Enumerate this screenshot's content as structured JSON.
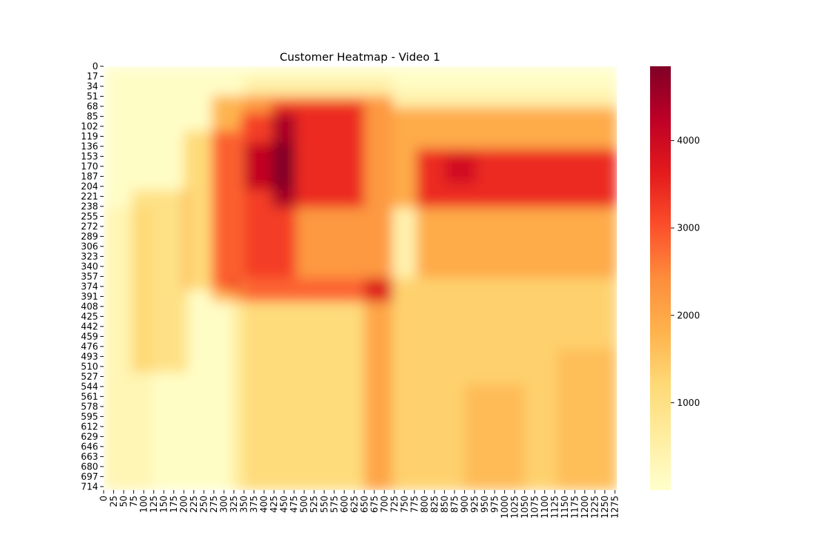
{
  "chart_data": {
    "type": "heatmap",
    "title": "Customer Heatmap - Video 1",
    "xlabel": "",
    "ylabel": "",
    "x_ticks": [
      0,
      25,
      50,
      75,
      100,
      125,
      150,
      175,
      200,
      225,
      250,
      275,
      300,
      325,
      350,
      375,
      400,
      425,
      450,
      475,
      500,
      525,
      550,
      575,
      600,
      625,
      650,
      675,
      700,
      725,
      750,
      775,
      800,
      825,
      850,
      875,
      900,
      925,
      950,
      975,
      1000,
      1025,
      1050,
      1075,
      1100,
      1125,
      1150,
      1175,
      1200,
      1225,
      1250,
      1275
    ],
    "y_ticks": [
      0,
      17,
      34,
      51,
      68,
      85,
      102,
      119,
      136,
      153,
      170,
      187,
      204,
      221,
      238,
      255,
      272,
      289,
      306,
      323,
      340,
      357,
      374,
      391,
      408,
      425,
      442,
      459,
      476,
      493,
      510,
      527,
      544,
      561,
      578,
      595,
      612,
      629,
      646,
      663,
      680,
      697,
      714
    ],
    "xlim": [
      0,
      1280
    ],
    "ylim": [
      0,
      720
    ],
    "colorbar": {
      "colormap": "YlOrRd",
      "min": 0,
      "max": 4850,
      "ticks": [
        1000,
        2000,
        3000,
        4000
      ],
      "colors": [
        "#ffffcc",
        "#ffeda0",
        "#fed976",
        "#feb24c",
        "#fd8d3c",
        "#fc4e2a",
        "#e31a1c",
        "#bd0026",
        "#800026"
      ]
    },
    "regions": [
      {
        "x": [
          0,
          1280
        ],
        "y": [
          0,
          720
        ],
        "value": 80
      },
      {
        "x": [
          350,
          720
        ],
        "y": [
          25,
          720
        ],
        "value": 450
      },
      {
        "x": [
          720,
          1280
        ],
        "y": [
          40,
          720
        ],
        "value": 350
      },
      {
        "x": [
          0,
          120
        ],
        "y": [
          240,
          720
        ],
        "value": 250
      },
      {
        "x": [
          75,
          210
        ],
        "y": [
          210,
          520
        ],
        "value": 900
      },
      {
        "x": [
          200,
          340
        ],
        "y": [
          110,
          380
        ],
        "value": 1100
      },
      {
        "x": [
          275,
          720
        ],
        "y": [
          55,
          400
        ],
        "value": 1700
      },
      {
        "x": [
          720,
          1280
        ],
        "y": [
          70,
          240
        ],
        "value": 1500
      },
      {
        "x": [
          780,
          1280
        ],
        "y": [
          140,
          360
        ],
        "value": 1500
      },
      {
        "x": [
          340,
          480
        ],
        "y": [
          80,
          360
        ],
        "value": 1000
      },
      {
        "x": [
          420,
          650
        ],
        "y": [
          60,
          240
        ],
        "value": 1200
      },
      {
        "x": [
          350,
          470
        ],
        "y": [
          130,
          210
        ],
        "value": 900
      },
      {
        "x": [
          850,
          930
        ],
        "y": [
          150,
          200
        ],
        "value": 500
      },
      {
        "x": [
          320,
          720
        ],
        "y": [
          360,
          720
        ],
        "value": 600
      },
      {
        "x": [
          650,
          1280
        ],
        "y": [
          360,
          720
        ],
        "value": 900
      },
      {
        "x": [
          900,
          1050
        ],
        "y": [
          540,
          720
        ],
        "value": 350
      },
      {
        "x": [
          1130,
          1280
        ],
        "y": [
          480,
          720
        ],
        "value": 300
      }
    ]
  }
}
